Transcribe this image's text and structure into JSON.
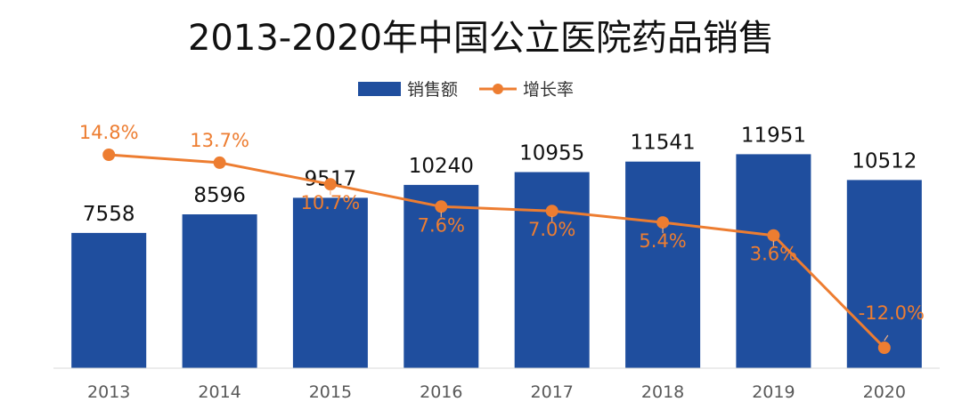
{
  "chart_data": {
    "type": "bar",
    "title": "2013-2020年中国公立医院药品销售",
    "categories": [
      "2013",
      "2014",
      "2015",
      "2016",
      "2017",
      "2018",
      "2019",
      "2020"
    ],
    "series": [
      {
        "name": "销售额",
        "type": "bar",
        "color": "#1f4e9e",
        "values": [
          7558,
          8596,
          9517,
          10240,
          10955,
          11541,
          11951,
          10512
        ],
        "labels": [
          "7558",
          "8596",
          "9517",
          "10240",
          "10955",
          "11541",
          "11951",
          "10512"
        ]
      },
      {
        "name": "增长率",
        "type": "line",
        "color": "#ed7d31",
        "values": [
          14.8,
          13.7,
          10.7,
          7.6,
          7.0,
          5.4,
          3.6,
          -12.0
        ],
        "labels": [
          "14.8%",
          "13.7%",
          "10.7%",
          "7.6%",
          "7.0%",
          "5.4%",
          "3.6%",
          "-12.0%"
        ]
      }
    ],
    "legend_position": "top-center",
    "grid": false
  }
}
